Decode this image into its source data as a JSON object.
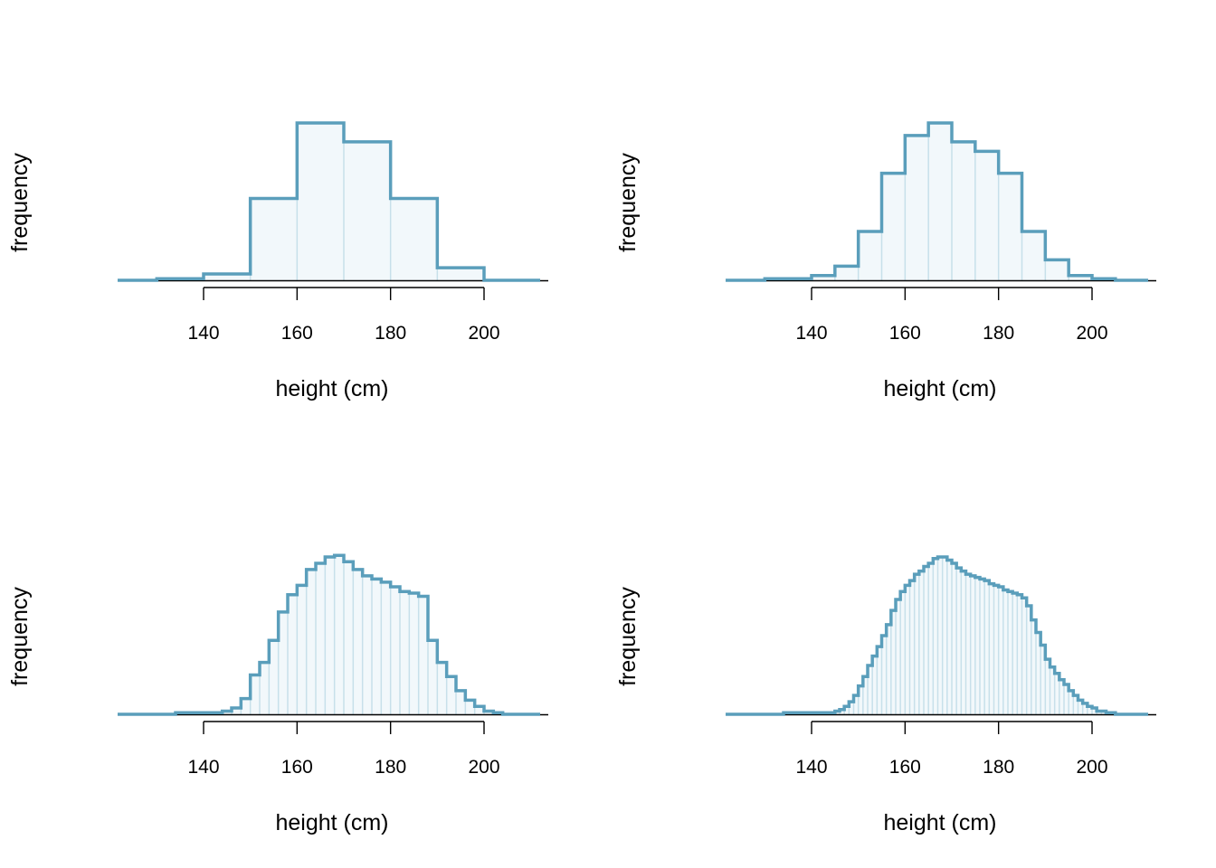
{
  "colors": {
    "outline": "#5a9ebb",
    "fill": "#f2f8fb",
    "divider": "#c7e0ea",
    "axis": "#000000"
  },
  "chart_data": [
    {
      "type": "bar",
      "xlabel": "height (cm)",
      "ylabel": "frequency",
      "xticks": [
        140,
        160,
        180,
        200
      ],
      "xlim": [
        122,
        212
      ],
      "ylim": [
        0,
        1
      ],
      "bin_width": 10,
      "bin_start": 120,
      "values": [
        0.0,
        0.01,
        0.04,
        0.52,
        1.0,
        0.88,
        0.52,
        0.08,
        0.0
      ]
    },
    {
      "type": "bar",
      "xlabel": "height (cm)",
      "ylabel": "frequency",
      "xticks": [
        140,
        160,
        180,
        200
      ],
      "xlim": [
        122,
        212
      ],
      "ylim": [
        0,
        1
      ],
      "bin_width": 5,
      "bin_start": 120,
      "values": [
        0.0,
        0.0,
        0.01,
        0.01,
        0.03,
        0.09,
        0.31,
        0.68,
        0.92,
        1.0,
        0.88,
        0.82,
        0.68,
        0.31,
        0.13,
        0.03,
        0.01,
        0.0
      ]
    },
    {
      "type": "bar",
      "xlabel": "height (cm)",
      "ylabel": "frequency",
      "xticks": [
        140,
        160,
        180,
        200
      ],
      "xlim": [
        122,
        212
      ],
      "ylim": [
        0,
        1
      ],
      "bin_width": 2,
      "bin_start": 122,
      "values": [
        0.0,
        0.0,
        0.0,
        0.0,
        0.0,
        0.0,
        0.01,
        0.01,
        0.01,
        0.01,
        0.01,
        0.02,
        0.04,
        0.1,
        0.25,
        0.33,
        0.47,
        0.65,
        0.76,
        0.82,
        0.92,
        0.96,
        1.0,
        1.01,
        0.97,
        0.92,
        0.88,
        0.86,
        0.84,
        0.81,
        0.78,
        0.77,
        0.75,
        0.47,
        0.33,
        0.24,
        0.15,
        0.09,
        0.05,
        0.02,
        0.01,
        0.0,
        0.0,
        0.0,
        0.0
      ]
    },
    {
      "type": "bar",
      "xlabel": "height (cm)",
      "ylabel": "frequency",
      "xticks": [
        140,
        160,
        180,
        200
      ],
      "xlim": [
        122,
        212
      ],
      "ylim": [
        0,
        1
      ],
      "bin_width": 1,
      "bin_start": 122,
      "values": [
        0.0,
        0.0,
        0.0,
        0.0,
        0.0,
        0.0,
        0.0,
        0.0,
        0.0,
        0.0,
        0.0,
        0.0,
        0.01,
        0.01,
        0.01,
        0.01,
        0.01,
        0.01,
        0.01,
        0.01,
        0.01,
        0.01,
        0.01,
        0.02,
        0.03,
        0.05,
        0.08,
        0.12,
        0.18,
        0.24,
        0.31,
        0.37,
        0.43,
        0.5,
        0.57,
        0.66,
        0.73,
        0.78,
        0.82,
        0.85,
        0.89,
        0.91,
        0.94,
        0.96,
        0.99,
        1.0,
        1.0,
        0.98,
        0.96,
        0.93,
        0.91,
        0.89,
        0.88,
        0.87,
        0.86,
        0.85,
        0.83,
        0.82,
        0.81,
        0.79,
        0.78,
        0.77,
        0.76,
        0.74,
        0.69,
        0.6,
        0.52,
        0.44,
        0.35,
        0.3,
        0.26,
        0.22,
        0.19,
        0.15,
        0.12,
        0.09,
        0.07,
        0.05,
        0.04,
        0.02,
        0.02,
        0.01,
        0.01,
        0.0,
        0.0,
        0.0,
        0.0,
        0.0,
        0.0,
        0.0
      ]
    }
  ]
}
